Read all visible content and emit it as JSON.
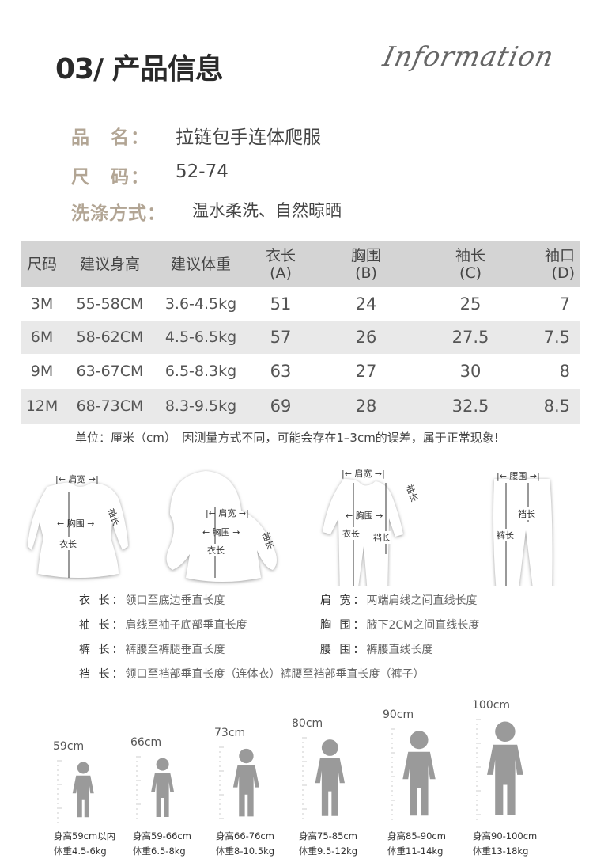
{
  "header": {
    "title": "03/ 产品信息",
    "script": "Information"
  },
  "info": [
    {
      "label": "品　名：",
      "value": "拉链包手连体爬服"
    },
    {
      "label": "尺　码：",
      "value": "52-74"
    },
    {
      "label": "洗涤方式：",
      "value": "温水柔洗、自然晾晒"
    }
  ],
  "table": {
    "headers": [
      "尺码",
      "建议身高",
      "建议体重",
      "衣长",
      "胸围",
      "袖长",
      "袖口"
    ],
    "subheaders": [
      "",
      "",
      "",
      "(A)",
      "(B)",
      "(C)",
      "(D)"
    ],
    "rows": [
      [
        "3M",
        "55-58CM",
        "3.6-4.5kg",
        "51",
        "24",
        "25",
        "7"
      ],
      [
        "6M",
        "58-62CM",
        "4.5-6.5kg",
        "57",
        "26",
        "27.5",
        "7.5"
      ],
      [
        "9M",
        "63-67CM",
        "6.5-8.3kg",
        "63",
        "27",
        "30",
        "8"
      ],
      [
        "12M",
        "68-73CM",
        "8.3-9.5kg",
        "69",
        "28",
        "32.5",
        "8.5"
      ]
    ],
    "note": "单位：厘米（cm）　因测量方式不同，可能会存在1–3cm的误差，属于正常现象!"
  },
  "diagram_labels": {
    "shoulder": "|← 肩宽 →|",
    "chest": "← 胸围 →",
    "length": "衣长",
    "sleeve": "袖长",
    "crotch": "裆长",
    "pants": "裤长",
    "waist": "|← 腰围 →|"
  },
  "definitions": [
    {
      "term": "衣 长：",
      "desc": "领口至底边垂直长度"
    },
    {
      "term": "肩 宽：",
      "desc": "两端肩线之间直线长度"
    },
    {
      "term": "袖 长：",
      "desc": "肩线至袖子底部垂直长度"
    },
    {
      "term": "胸 围：",
      "desc": "腋下2CM之间直线长度"
    },
    {
      "term": "裤 长：",
      "desc": "裤腰至裤腿垂直长度"
    },
    {
      "term": "腰 围：",
      "desc": "裤腰直线长度"
    },
    {
      "term": "裆 长：",
      "desc": "领口至裆部垂直长度（连体衣）裤腰至裆部垂直长度（裤子）"
    }
  ],
  "kids": [
    {
      "height": "59cm",
      "h": "身高59cm以内",
      "w": "体重4.5-6kg"
    },
    {
      "height": "66cm",
      "h": "身高59-66cm",
      "w": "体重6.5-8kg"
    },
    {
      "height": "73cm",
      "h": "身高66-76cm",
      "w": "体重8-10.5kg"
    },
    {
      "height": "80cm",
      "h": "身高75-85cm",
      "w": "体重9.5-12kg"
    },
    {
      "height": "90cm",
      "h": "身高85-90cm",
      "w": "体重11-14kg"
    },
    {
      "height": "100cm",
      "h": "身高90-100cm",
      "w": "体重13-18kg"
    }
  ],
  "colors": {
    "label": "#b2a594",
    "table_header": "#d4d4d4",
    "stripe": "#e9e9e9",
    "silhouette": "#9a9a9a"
  }
}
